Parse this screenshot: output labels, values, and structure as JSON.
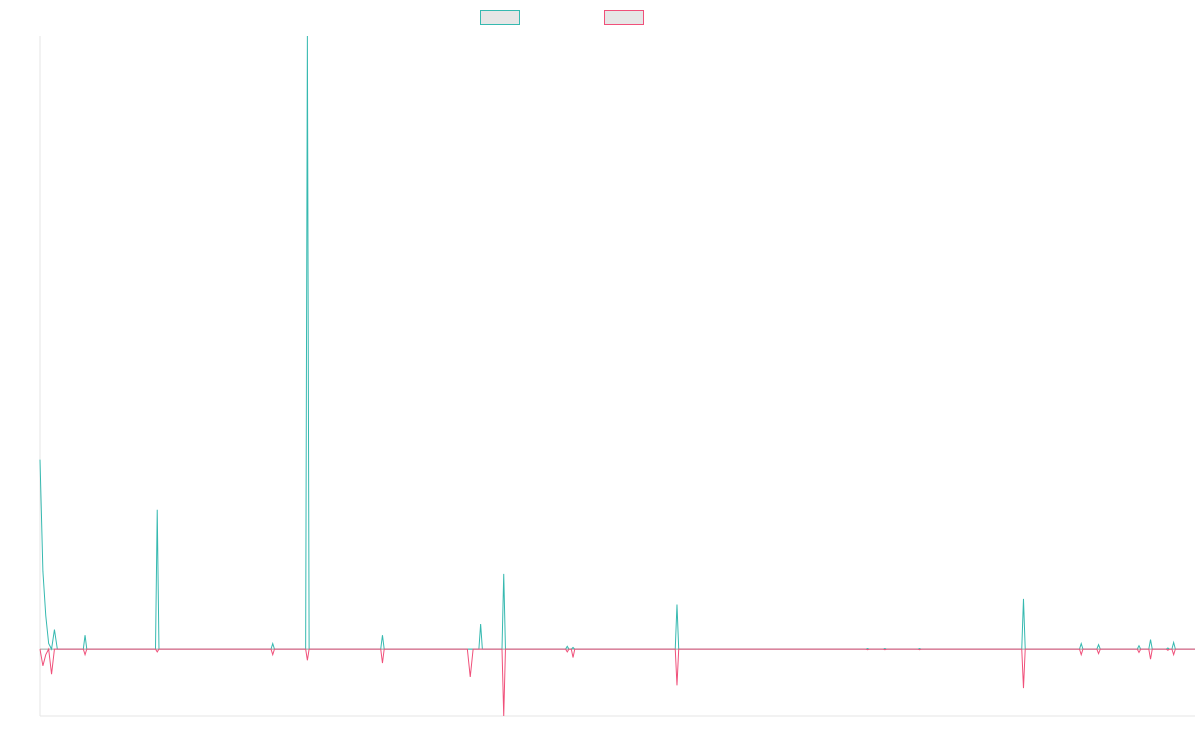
{
  "chart_data": {
    "type": "line",
    "title": "",
    "xlabel": "",
    "ylabel": "",
    "legend_position": "top-center",
    "grid": false,
    "xlim": [
      0,
      200
    ],
    "ylim": [
      -12,
      110
    ],
    "series": [
      {
        "name": "",
        "color": "#36b9b0",
        "fill": "#e6e6e6",
        "points": [
          [
            0,
            34
          ],
          [
            0.5,
            14
          ],
          [
            1,
            6
          ],
          [
            1.5,
            1
          ],
          [
            2,
            0
          ],
          [
            2.5,
            3.5
          ],
          [
            3,
            0
          ],
          [
            7.5,
            0
          ],
          [
            7.8,
            2.5
          ],
          [
            8.1,
            0
          ],
          [
            20,
            0
          ],
          [
            20.3,
            25
          ],
          [
            20.6,
            0
          ],
          [
            40,
            0
          ],
          [
            40.3,
            1
          ],
          [
            40.6,
            0
          ],
          [
            46,
            0
          ],
          [
            46.3,
            110
          ],
          [
            46.6,
            0
          ],
          [
            59,
            0
          ],
          [
            59.3,
            2.5
          ],
          [
            59.6,
            0
          ],
          [
            76,
            0
          ],
          [
            76.3,
            4.5
          ],
          [
            76.6,
            0
          ],
          [
            80,
            0
          ],
          [
            80.3,
            13.5
          ],
          [
            80.6,
            0
          ],
          [
            91,
            0
          ],
          [
            91.3,
            0.5
          ],
          [
            91.6,
            0
          ],
          [
            92,
            0
          ],
          [
            92.3,
            0.3
          ],
          [
            92.6,
            0
          ],
          [
            110,
            0
          ],
          [
            110.3,
            8
          ],
          [
            110.6,
            0
          ],
          [
            143,
            0
          ],
          [
            143.3,
            0.1
          ],
          [
            143.6,
            0
          ],
          [
            146,
            0
          ],
          [
            146.3,
            0.1
          ],
          [
            146.6,
            0
          ],
          [
            152,
            0
          ],
          [
            152.3,
            0.1
          ],
          [
            152.6,
            0
          ],
          [
            170,
            0
          ],
          [
            170.3,
            9
          ],
          [
            170.6,
            0
          ],
          [
            180,
            0
          ],
          [
            180.3,
            1
          ],
          [
            180.6,
            0
          ],
          [
            183,
            0
          ],
          [
            183.3,
            0.8
          ],
          [
            183.6,
            0
          ],
          [
            190,
            0
          ],
          [
            190.3,
            0.6
          ],
          [
            190.6,
            0
          ],
          [
            192,
            0
          ],
          [
            192.3,
            1.7
          ],
          [
            192.6,
            0
          ],
          [
            195,
            0
          ],
          [
            195.3,
            0.2
          ],
          [
            195.6,
            0
          ],
          [
            196,
            0
          ],
          [
            196.3,
            1.2
          ],
          [
            196.6,
            0
          ],
          [
            200,
            0
          ]
        ]
      },
      {
        "name": "",
        "color": "#f0507a",
        "fill": "#e6e6e6",
        "points": [
          [
            0,
            0
          ],
          [
            0.5,
            -3
          ],
          [
            1,
            -1
          ],
          [
            1.5,
            0
          ],
          [
            2,
            -4.5
          ],
          [
            2.5,
            0
          ],
          [
            7.5,
            0
          ],
          [
            7.8,
            -1
          ],
          [
            8.1,
            0
          ],
          [
            20,
            0
          ],
          [
            20.3,
            -0.5
          ],
          [
            20.6,
            0
          ],
          [
            40,
            0
          ],
          [
            40.3,
            -1
          ],
          [
            40.6,
            0
          ],
          [
            46,
            0
          ],
          [
            46.3,
            -2
          ],
          [
            46.6,
            0
          ],
          [
            59,
            0
          ],
          [
            59.3,
            -2.5
          ],
          [
            59.6,
            0
          ],
          [
            74,
            0
          ],
          [
            74.5,
            -5
          ],
          [
            75,
            0
          ],
          [
            80,
            0
          ],
          [
            80.3,
            -12
          ],
          [
            80.6,
            0
          ],
          [
            91,
            0
          ],
          [
            91.3,
            -0.5
          ],
          [
            91.6,
            0
          ],
          [
            92,
            0
          ],
          [
            92.3,
            -1.5
          ],
          [
            92.6,
            0
          ],
          [
            110,
            0
          ],
          [
            110.3,
            -6.5
          ],
          [
            110.6,
            0
          ],
          [
            143,
            0
          ],
          [
            143.3,
            -0.1
          ],
          [
            143.6,
            0
          ],
          [
            146,
            0
          ],
          [
            146.3,
            -0.1
          ],
          [
            146.6,
            0
          ],
          [
            152,
            0
          ],
          [
            152.3,
            -0.1
          ],
          [
            152.6,
            0
          ],
          [
            170,
            0
          ],
          [
            170.3,
            -7
          ],
          [
            170.6,
            0
          ],
          [
            180,
            0
          ],
          [
            180.3,
            -1
          ],
          [
            180.6,
            0
          ],
          [
            183,
            0
          ],
          [
            183.3,
            -0.8
          ],
          [
            183.6,
            0
          ],
          [
            190,
            0
          ],
          [
            190.3,
            -0.6
          ],
          [
            190.6,
            0
          ],
          [
            192,
            0
          ],
          [
            192.3,
            -1.8
          ],
          [
            192.6,
            0
          ],
          [
            195,
            0
          ],
          [
            195.3,
            -0.2
          ],
          [
            195.6,
            0
          ],
          [
            196,
            0
          ],
          [
            196.3,
            -1
          ],
          [
            196.6,
            0
          ],
          [
            200,
            0
          ]
        ]
      }
    ]
  }
}
